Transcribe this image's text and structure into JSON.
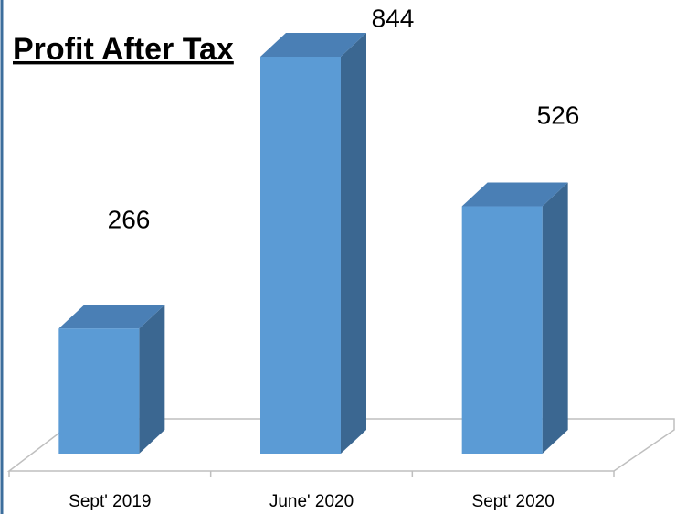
{
  "chart_data": {
    "type": "bar",
    "title": "Profit After Tax",
    "categories": [
      "Sept' 2019",
      "June' 2020",
      "Sept' 2020"
    ],
    "values": [
      266,
      844,
      526
    ],
    "color": "#5b9bd5"
  }
}
